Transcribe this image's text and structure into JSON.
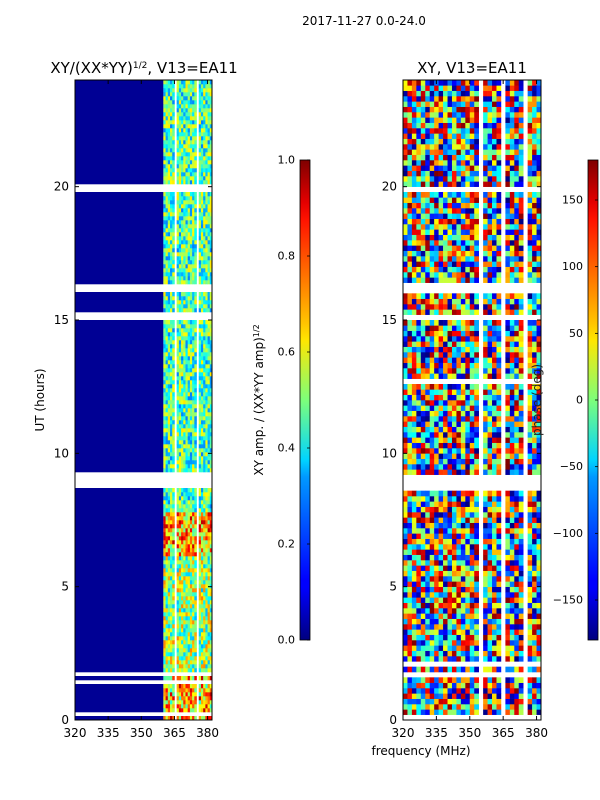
{
  "suptitle": "2017-11-27 0.0-24.0",
  "chart_data": [
    {
      "type": "heatmap",
      "title_main": "XY/(XX*YY)",
      "title_sup": "1/2",
      "title_tail": ", V13=EA11",
      "xlabel": "",
      "ylabel": "UT (hours)",
      "xlim": [
        320,
        382
      ],
      "ylim": [
        0,
        24
      ],
      "xticks": [
        320,
        335,
        350,
        365,
        380
      ],
      "yticks": [
        0,
        5,
        10,
        15,
        20
      ],
      "colormap": "jet",
      "colorbar": {
        "label_main": "XY amp. / (XX*YY amp)",
        "label_sup": "1/2",
        "min": 0.0,
        "max": 1.0,
        "ticks": [
          "0.0",
          "0.2",
          "0.4",
          "0.6",
          "0.8",
          "1.0"
        ]
      },
      "flagged_freq_range_mhz": [
        320,
        360
      ],
      "flagged_value": 0.02,
      "active_freq_range_mhz": [
        360,
        382
      ],
      "active_value_ranges": [
        {
          "ut": [
            0,
            1.8
          ],
          "low": 0.4,
          "high": 0.95
        },
        {
          "ut": [
            1.8,
            6.2
          ],
          "low": 0.3,
          "high": 0.75
        },
        {
          "ut": [
            6.2,
            7.8
          ],
          "low": 0.45,
          "high": 0.95
        },
        {
          "ut": [
            7.8,
            24
          ],
          "low": 0.25,
          "high": 0.65
        }
      ]
    },
    {
      "type": "heatmap",
      "title_main": "XY, V13=EA11",
      "xlabel": "frequency (MHz)",
      "ylabel": "",
      "xlim": [
        320,
        382
      ],
      "ylim": [
        0,
        24
      ],
      "xticks": [
        320,
        335,
        350,
        365,
        380
      ],
      "yticks": [
        0,
        5,
        10,
        15,
        20
      ],
      "colormap": "jet",
      "colorbar": {
        "label_main": "phase (deg)",
        "min": -180,
        "max": 180,
        "ticks": [
          "−150",
          "−100",
          "−50",
          "0",
          "50",
          "100",
          "150"
        ]
      },
      "value_range_deg": [
        -180,
        180
      ]
    }
  ],
  "flagged_ut_bands": [
    [
      0.1,
      0.28
    ],
    [
      1.35,
      1.45
    ],
    [
      1.6,
      1.75
    ],
    [
      2.05,
      2.12
    ],
    [
      2.35,
      2.42
    ],
    [
      3.4,
      3.5
    ],
    [
      8.65,
      9.25
    ],
    [
      12.7,
      12.8
    ],
    [
      15.05,
      15.25
    ],
    [
      16.1,
      16.35
    ],
    [
      19.85,
      20.05
    ],
    [
      23.2,
      23.3
    ]
  ],
  "flagged_freq_channels_mhz": [
    355.5,
    365.7,
    375.9
  ]
}
